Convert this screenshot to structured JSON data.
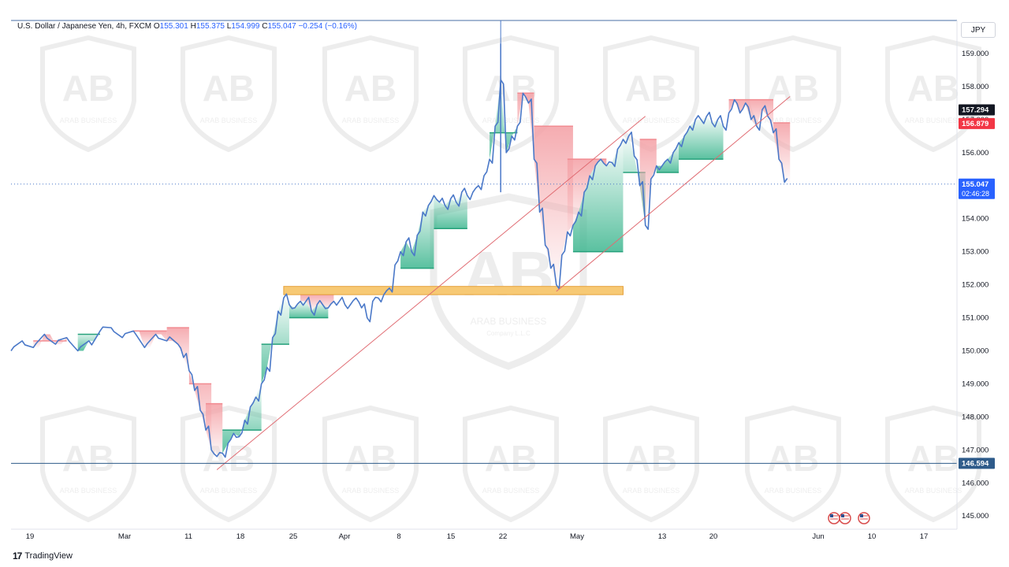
{
  "header": {
    "symbol": "U.S. Dollar / Japanese Yen, 4h, FXCM",
    "o_label": "O",
    "o_value": "155.301",
    "h_label": "H",
    "h_value": "155.375",
    "l_label": "L",
    "l_value": "154.999",
    "c_label": "C",
    "c_value": "155.047",
    "change": "−0.254 (−0.16%)"
  },
  "currency": "JPY",
  "footer": {
    "brand": "TradingView",
    "mark": "17"
  },
  "watermark": {
    "name": "ARAB BUSINESS",
    "sub": "Company L.L.C"
  },
  "chart_data": {
    "type": "line",
    "title": "U.S. Dollar / Japanese Yen, 4h, FXCM",
    "ylim": [
      144.6,
      160.0
    ],
    "y_ticks": [
      "159.000",
      "158.000",
      "157.000",
      "156.000",
      "155.000",
      "154.000",
      "153.000",
      "152.000",
      "151.000",
      "150.000",
      "149.000",
      "148.000",
      "147.000",
      "146.000",
      "145.000"
    ],
    "x_ticks": [
      "19",
      "Mar",
      "11",
      "18",
      "25",
      "Apr",
      "8",
      "15",
      "22",
      "May",
      "13",
      "20",
      "Jun",
      "10",
      "17"
    ],
    "price_labels": {
      "high_level": "157.294",
      "red_level": "156.879",
      "last_price": "155.047",
      "countdown": "02:46:28",
      "support_level": "146.594"
    },
    "price_series": [
      [
        0,
        150.0
      ],
      [
        2,
        150.3
      ],
      [
        4,
        150.1
      ],
      [
        6,
        150.5
      ],
      [
        8,
        150.2
      ],
      [
        10,
        150.4
      ],
      [
        12,
        150.0
      ],
      [
        14,
        150.3
      ],
      [
        16,
        150.6
      ],
      [
        18,
        150.7
      ],
      [
        20,
        150.4
      ],
      [
        22,
        150.6
      ],
      [
        24,
        150.1
      ],
      [
        26,
        150.5
      ],
      [
        28,
        150.3
      ],
      [
        30,
        150.2
      ],
      [
        31,
        149.8
      ],
      [
        32,
        149.4
      ],
      [
        33,
        148.8
      ],
      [
        34,
        148.2
      ],
      [
        35,
        147.6
      ],
      [
        36,
        147.0
      ],
      [
        37,
        146.8
      ],
      [
        38,
        146.9
      ],
      [
        39,
        147.2
      ],
      [
        40,
        147.5
      ],
      [
        41,
        147.4
      ],
      [
        42,
        147.9
      ],
      [
        43,
        148.3
      ],
      [
        44,
        148.6
      ],
      [
        45,
        149.0
      ],
      [
        46,
        149.5
      ],
      [
        47,
        150.4
      ],
      [
        48,
        151.2
      ],
      [
        49,
        151.6
      ],
      [
        50,
        151.4
      ],
      [
        51,
        151.3
      ],
      [
        52,
        151.5
      ],
      [
        53,
        151.5
      ],
      [
        54,
        151.2
      ],
      [
        55,
        151.4
      ],
      [
        56,
        151.4
      ],
      [
        57,
        151.3
      ],
      [
        58,
        151.5
      ],
      [
        59,
        151.5
      ],
      [
        60,
        151.4
      ],
      [
        61,
        151.4
      ],
      [
        62,
        151.6
      ],
      [
        63,
        151.3
      ],
      [
        64,
        151.0
      ],
      [
        65,
        151.5
      ],
      [
        66,
        151.6
      ],
      [
        67,
        151.7
      ],
      [
        68,
        151.9
      ],
      [
        69,
        152.6
      ],
      [
        70,
        153.0
      ],
      [
        71,
        153.3
      ],
      [
        72,
        153.0
      ],
      [
        73,
        153.5
      ],
      [
        74,
        154.2
      ],
      [
        75,
        154.4
      ],
      [
        76,
        154.7
      ],
      [
        77,
        154.5
      ],
      [
        78,
        154.4
      ],
      [
        79,
        154.6
      ],
      [
        80,
        154.5
      ],
      [
        81,
        154.8
      ],
      [
        82,
        154.7
      ],
      [
        83,
        154.8
      ],
      [
        84,
        155.0
      ],
      [
        85,
        155.3
      ],
      [
        86,
        155.8
      ],
      [
        87,
        156.8
      ],
      [
        88,
        158.2
      ],
      [
        89,
        156.0
      ],
      [
        90,
        156.5
      ],
      [
        91,
        156.8
      ],
      [
        92,
        157.8
      ],
      [
        93,
        157.5
      ],
      [
        94,
        155.8
      ],
      [
        95,
        154.2
      ],
      [
        96,
        153.2
      ],
      [
        97,
        152.5
      ],
      [
        98,
        152.0
      ],
      [
        99,
        152.9
      ],
      [
        100,
        153.6
      ],
      [
        101,
        153.8
      ],
      [
        102,
        154.2
      ],
      [
        103,
        154.8
      ],
      [
        104,
        155.3
      ],
      [
        105,
        155.6
      ],
      [
        106,
        155.8
      ],
      [
        107,
        155.6
      ],
      [
        108,
        155.7
      ],
      [
        109,
        156.1
      ],
      [
        110,
        156.4
      ],
      [
        111,
        156.5
      ],
      [
        112,
        155.9
      ],
      [
        113,
        155.0
      ],
      [
        114,
        153.8
      ],
      [
        115,
        155.2
      ],
      [
        116,
        155.6
      ],
      [
        117,
        155.6
      ],
      [
        118,
        155.8
      ],
      [
        119,
        156.0
      ],
      [
        120,
        156.3
      ],
      [
        121,
        156.5
      ],
      [
        122,
        156.8
      ],
      [
        123,
        157.0
      ],
      [
        124,
        157.0
      ],
      [
        125,
        157.1
      ],
      [
        126,
        156.9
      ],
      [
        127,
        157.0
      ],
      [
        128,
        156.8
      ],
      [
        129,
        157.2
      ],
      [
        130,
        157.6
      ],
      [
        131,
        157.2
      ],
      [
        132,
        157.5
      ],
      [
        133,
        157.0
      ],
      [
        134,
        156.8
      ],
      [
        135,
        157.3
      ],
      [
        136,
        157.1
      ],
      [
        137,
        156.6
      ],
      [
        138,
        155.8
      ],
      [
        139,
        155.1
      ]
    ],
    "support_zone": {
      "low": 151.7,
      "high": 151.95,
      "start_index": 49,
      "end_index": 110
    },
    "trendlines": [
      {
        "from": [
          37,
          146.4
        ],
        "to": [
          114,
          157.1
        ]
      },
      {
        "from": [
          98,
          151.8
        ],
        "to": [
          140,
          157.7
        ]
      }
    ],
    "horizontal_levels": [
      146.594,
      155.047
    ]
  }
}
